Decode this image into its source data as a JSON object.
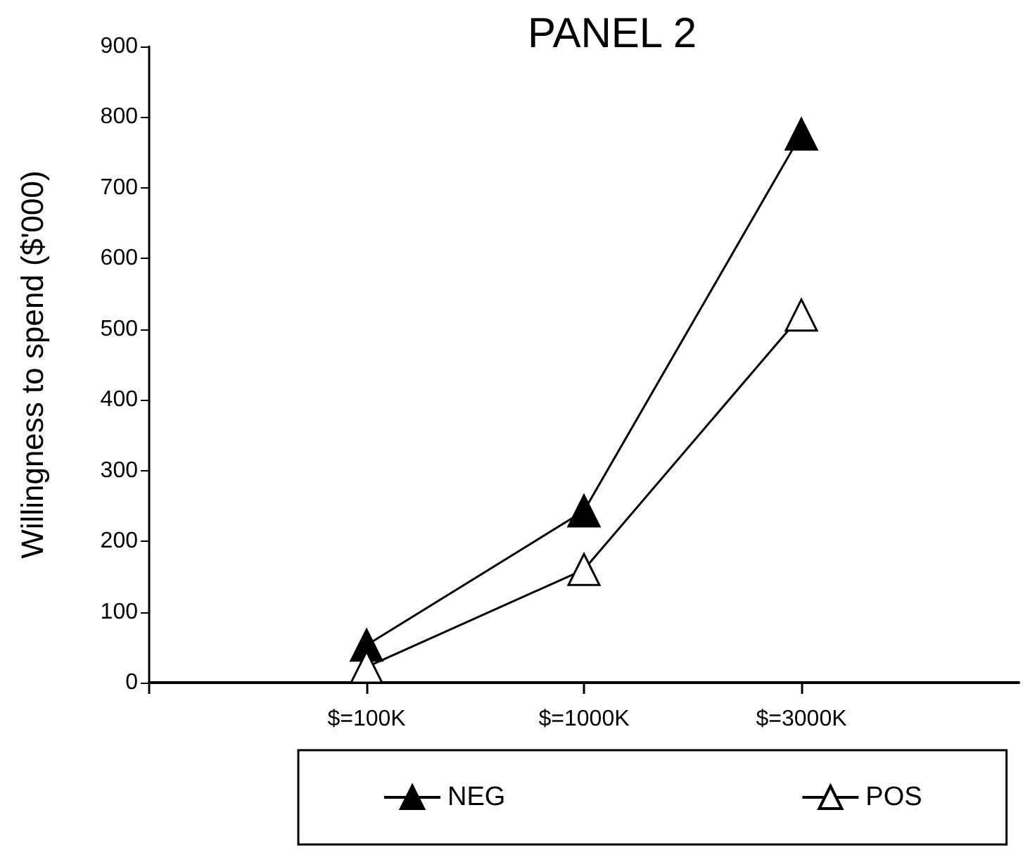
{
  "chart_data": {
    "type": "line",
    "title": "PANEL 2",
    "ylabel": "Willingness to spend ($'000)",
    "categories": [
      null,
      "$=100K",
      "$=1000K",
      "$=3000K",
      null
    ],
    "series": [
      {
        "name": "NEG",
        "color": "#000000",
        "values": [
          null,
          53,
          243,
          776,
          null
        ]
      },
      {
        "name": "POS",
        "color": "#ffffff",
        "values": [
          null,
          22,
          160,
          520,
          null
        ]
      }
    ],
    "ylim": [
      0,
      900
    ],
    "yticks": [
      0,
      100,
      200,
      300,
      400,
      500,
      600,
      700,
      800,
      900
    ],
    "grid": false,
    "legend": "bottom",
    "marker": "triangle",
    "line_style": "solid"
  }
}
